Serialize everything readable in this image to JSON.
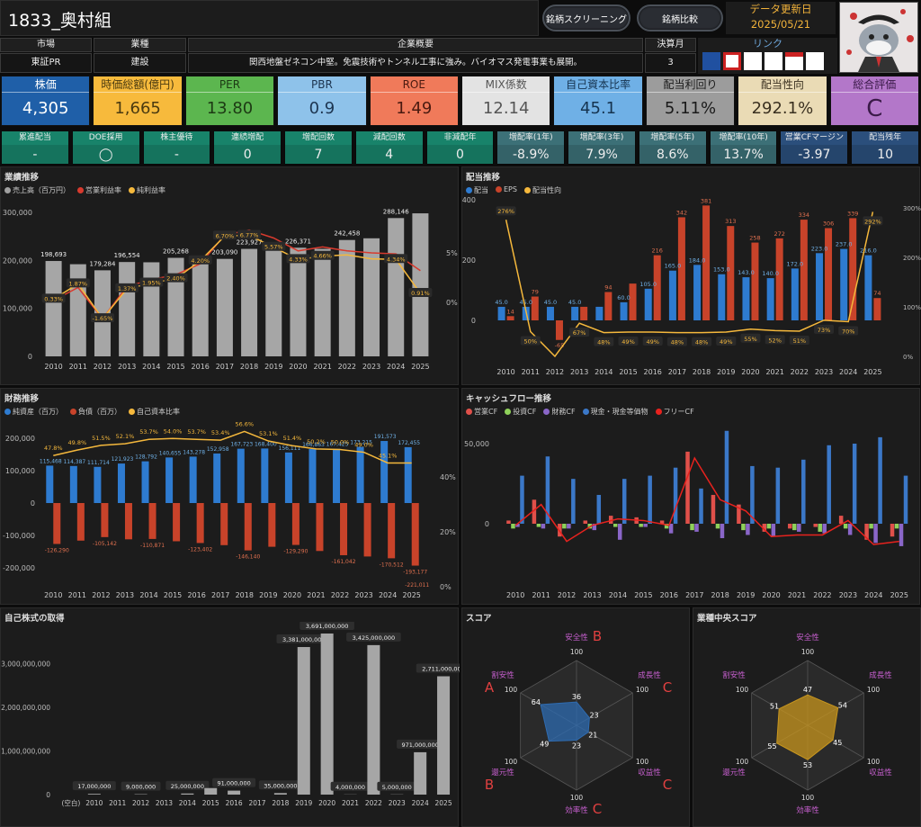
{
  "title": "1833_奥村組",
  "buttons": {
    "screening": "銘柄スクリーニング",
    "compare": "銘柄比較"
  },
  "update": {
    "label": "データ更新日",
    "date": "2025/05/21"
  },
  "info": {
    "market_h": "市場",
    "market": "東証PR",
    "industry_h": "業種",
    "industry": "建設",
    "overview_h": "企業概要",
    "overview": "関西地盤ゼネコン中堅。免震技術やトンネル工事に強み。バイオマス発電事業も展開。",
    "fiscal_h": "決算月",
    "fiscal": "3",
    "link_h": "リンク"
  },
  "kpis": [
    {
      "label": "株価",
      "value": "4,305",
      "bg": "#1f5fa8",
      "fg": "#ffffff"
    },
    {
      "label": "時価総額(億円)",
      "value": "1,665",
      "bg": "#f7ba3c",
      "fg": "#4a3a10"
    },
    {
      "label": "PER",
      "value": "13.80",
      "bg": "#5cb64f",
      "fg": "#1d3a14"
    },
    {
      "label": "PBR",
      "value": "0.9",
      "bg": "#8ec2ea",
      "fg": "#1d3550"
    },
    {
      "label": "ROE",
      "value": "1.49",
      "bg": "#f07a5a",
      "fg": "#4a1a10"
    },
    {
      "label": "MIX係数",
      "value": "12.14",
      "bg": "#e3e3e3",
      "fg": "#555555"
    },
    {
      "label": "自己資本比率",
      "value": "45.1",
      "bg": "#6fb0e6",
      "fg": "#163450"
    },
    {
      "label": "配当利回り",
      "value": "5.11%",
      "bg": "#9c9c9c",
      "fg": "#1a1a1a"
    },
    {
      "label": "配当性向",
      "value": "292.1%",
      "bg": "#eadbb5",
      "fg": "#3a3020"
    },
    {
      "label": "総合評価",
      "value": "C",
      "bg": "#b377c9",
      "fg": "#3a1a48"
    }
  ],
  "stats": [
    {
      "label": "累進配当",
      "value": "-",
      "bg": "#18836a"
    },
    {
      "label": "DOE採用",
      "value": "◯",
      "bg": "#18836a"
    },
    {
      "label": "株主優待",
      "value": "-",
      "bg": "#18836a"
    },
    {
      "label": "連続増配",
      "value": "0",
      "bg": "#18836a"
    },
    {
      "label": "増配回数",
      "value": "7",
      "bg": "#18836a"
    },
    {
      "label": "減配回数",
      "value": "4",
      "bg": "#18836a"
    },
    {
      "label": "非減配年",
      "value": "0",
      "bg": "#18836a"
    },
    {
      "label": "増配率(1年)",
      "value": "-8.9%",
      "bg": "#3c7077"
    },
    {
      "label": "増配率(3年)",
      "value": "7.9%",
      "bg": "#3c7077"
    },
    {
      "label": "増配率(5年)",
      "value": "8.6%",
      "bg": "#3c7077"
    },
    {
      "label": "増配率(10年)",
      "value": "13.7%",
      "bg": "#3c7077"
    },
    {
      "label": "営業CFマージン",
      "value": "-3.97",
      "bg": "#2b4f7c"
    },
    {
      "label": "配当残年",
      "value": "10",
      "bg": "#2b4f7c"
    }
  ],
  "panels": {
    "perf": "業績推移",
    "div": "配当推移",
    "fin": "財務推移",
    "cf": "キャッシュフロー推移",
    "buyback": "自己株式の取得",
    "score": "スコア",
    "indscore": "業種中央スコア"
  },
  "chart_data": [
    {
      "type": "bar",
      "id": "performance",
      "title": "業績推移",
      "legend": [
        "売上高（百万円）",
        "営業利益率",
        "純利益率"
      ],
      "categories": [
        "2010",
        "2011",
        "2012",
        "2013",
        "2014",
        "2015",
        "2016",
        "2017",
        "2018",
        "2019",
        "2020",
        "2021",
        "2022",
        "2023",
        "2024",
        "2025"
      ],
      "series": [
        {
          "name": "売上高（百万円）",
          "values": [
            198693,
            192000,
            179284,
            196554,
            196000,
            205268,
            199000,
            203090,
            223927,
            224000,
            226371,
            224000,
            242458,
            246000,
            288146,
            298000
          ]
        },
        {
          "name": "営業利益率",
          "values": [
            0.2,
            1.5,
            -1.65,
            1.6,
            2.3,
            2.8,
            3.9,
            6.8,
            7.3,
            6.5,
            5.2,
            5.6,
            5.2,
            5.0,
            4.9,
            3.2
          ]
        },
        {
          "name": "純利益率",
          "values": [
            0.33,
            1.87,
            -1.65,
            1.37,
            1.95,
            2.4,
            4.2,
            6.7,
            6.77,
            5.57,
            4.33,
            4.66,
            4.8,
            4.4,
            4.34,
            0.91
          ]
        }
      ],
      "value_labels": [
        "198,693",
        "",
        "179,284",
        "196,554",
        "",
        "205,268",
        "",
        "203,090",
        "223,927",
        "",
        "226,371",
        "",
        "242,458",
        "",
        "288,146",
        ""
      ],
      "net_labels": [
        "0.33%",
        "1.87%",
        "-1.65%",
        "1.37%",
        "1.95%",
        "2.40%",
        "4.20%",
        "6.70%",
        "6.77%",
        "5.57%",
        "4.33%",
        "4.66%",
        "",
        "",
        "4.34%",
        "0.91%"
      ],
      "yticks": [
        "300,000",
        "200,000",
        "100,000",
        "0"
      ],
      "y2ticks": [
        "5%",
        "0%"
      ],
      "ylim": [
        0,
        300000
      ]
    },
    {
      "type": "bar",
      "id": "dividend",
      "title": "配当推移",
      "legend": [
        "配当",
        "EPS",
        "配当性向"
      ],
      "categories": [
        "2010",
        "2011",
        "2012",
        "2013",
        "2014",
        "2015",
        "2016",
        "2017",
        "2018",
        "2019",
        "2020",
        "2021",
        "2022",
        "2023",
        "2024",
        "2025"
      ],
      "series": [
        {
          "name": "配当",
          "values": [
            45,
            45,
            45,
            45,
            45,
            60,
            105,
            165,
            184,
            153,
            143,
            140,
            172,
            223,
            237,
            216
          ]
        },
        {
          "name": "EPS",
          "values": [
            14,
            79,
            -65,
            45,
            94,
            122,
            216,
            342,
            381,
            313,
            258,
            272,
            334,
            306,
            339,
            74
          ]
        },
        {
          "name": "配当性向",
          "values": [
            276,
            50,
            0,
            67,
            48,
            49,
            49,
            48,
            48,
            49,
            55,
            52,
            51,
            73,
            70,
            292
          ]
        }
      ],
      "div_labels": [
        "45.0",
        "45.0",
        "45.0",
        "45.0",
        "",
        "60.0",
        "105.0",
        "165.0",
        "184.0",
        "153.0",
        "143.0",
        "140.0",
        "172.0",
        "223.0",
        "237.0",
        "216.0"
      ],
      "eps_labels": [
        "14",
        "79",
        "-65",
        "",
        "94",
        "",
        "216",
        "342",
        "381",
        "313",
        "258",
        "272",
        "334",
        "306",
        "339",
        "74"
      ],
      "ratio_labels": [
        "276%",
        "50%",
        "",
        "67%",
        "48%",
        "49%",
        "49%",
        "48%",
        "48%",
        "49%",
        "55%",
        "52%",
        "51%",
        "73%",
        "70%",
        "292%"
      ],
      "yticks": [
        "400",
        "200",
        "0"
      ],
      "y2ticks": [
        "300%",
        "200%",
        "100%",
        "0%"
      ]
    },
    {
      "type": "bar",
      "id": "financial",
      "title": "財務推移",
      "legend": [
        "純資産（百万）",
        "負債（百万）",
        "自己資本比率"
      ],
      "categories": [
        "2010",
        "2011",
        "2012",
        "2013",
        "2014",
        "2015",
        "2016",
        "2017",
        "2018",
        "2019",
        "2020",
        "2021",
        "2022",
        "2023",
        "2024",
        "2025"
      ],
      "series": [
        {
          "name": "純資産（百万）",
          "values": [
            115468,
            114387,
            111714,
            121923,
            128792,
            140655,
            143278,
            152958,
            167723,
            168400,
            156111,
            166863,
            167425,
            173215,
            191573,
            172455
          ]
        },
        {
          "name": "負債（百万）",
          "values": [
            -126290,
            -116000,
            -105142,
            -112000,
            -110871,
            -118000,
            -123402,
            -130000,
            -146140,
            -135000,
            -129290,
            -148000,
            -161042,
            -165000,
            -170512,
            -193177
          ]
        },
        {
          "name": "自己資本比率",
          "values": [
            47.8,
            49.8,
            51.5,
            52.1,
            53.7,
            54.0,
            53.7,
            53.4,
            56.6,
            53.1,
            51.4,
            50.2,
            50.0,
            49.0,
            45.1,
            45.1
          ]
        }
      ],
      "asset_labels": [
        "115,468",
        "114,387",
        "111,714",
        "121,923",
        "128,792",
        "140,655",
        "143,278",
        "152,958",
        "167,723",
        "168,400",
        "156,111",
        "166,863",
        "167,425",
        "173,215",
        "191,573",
        "172,455"
      ],
      "debt_labels": [
        "-126,290",
        "",
        "-105,142",
        "",
        "-110,871",
        "",
        "-123,402",
        "",
        "-146,140",
        "",
        "-129,290",
        "",
        "-161,042",
        "",
        "-170,512",
        "-193,177"
      ],
      "extra_debt_label": "-221,011",
      "ratio_labels": [
        "47.8%",
        "49.8%",
        "51.5%",
        "52.1%",
        "53.7%",
        "54.0%",
        "53.7%",
        "53.4%",
        "56.6%",
        "53.1%",
        "51.4%",
        "50.2%",
        "50.0%",
        "49.0%",
        "45.1%",
        ""
      ],
      "yticks": [
        "200,000",
        "100,000",
        "0",
        "-100,000",
        "-200,000"
      ],
      "y2ticks": [
        "40%",
        "20%",
        "0%"
      ]
    },
    {
      "type": "bar",
      "id": "cashflow",
      "title": "キャッシュフロー推移",
      "legend": [
        "営業CF",
        "投資CF",
        "財務CF",
        "現金・現金等価物",
        "フリーCF"
      ],
      "categories": [
        "2010",
        "2011",
        "2012",
        "2013",
        "2014",
        "2015",
        "2016",
        "2017",
        "2018",
        "2019",
        "2020",
        "2021",
        "2022",
        "2023",
        "2024",
        "2025"
      ],
      "series": [
        {
          "name": "営業CF",
          "values": [
            2000,
            15000,
            -8000,
            2000,
            5000,
            4000,
            2000,
            45000,
            18000,
            12000,
            -5000,
            -3000,
            -2000,
            5000,
            -10000,
            -8000
          ]
        },
        {
          "name": "投資CF",
          "values": [
            -3000,
            -2000,
            -3000,
            -3000,
            -2000,
            -2000,
            -3000,
            -4000,
            -3000,
            -4000,
            -3000,
            -4000,
            -5000,
            -3000,
            -3000,
            -3000
          ]
        },
        {
          "name": "財務CF",
          "values": [
            -2000,
            -3000,
            -3000,
            -4000,
            -10000,
            -2000,
            -6000,
            -5000,
            -9000,
            -7000,
            -8000,
            -5000,
            -6000,
            -7000,
            -12000,
            -14000
          ]
        },
        {
          "name": "現金・現金等価物",
          "values": [
            30000,
            42000,
            28000,
            18000,
            28000,
            30000,
            35000,
            22000,
            58000,
            36000,
            35000,
            40000,
            49000,
            50000,
            54000,
            30000
          ]
        },
        {
          "name": "フリーCF",
          "values": [
            -1000,
            12000,
            -11000,
            -1000,
            3000,
            2000,
            -1000,
            41000,
            15000,
            8000,
            -8000,
            -7000,
            -7000,
            2000,
            -13000,
            -11000
          ]
        }
      ],
      "yticks": [
        "50,000",
        "0"
      ]
    },
    {
      "type": "bar",
      "id": "buyback",
      "title": "自己株式の取得",
      "categories": [
        "(空白)",
        "2010",
        "2011",
        "2012",
        "2013",
        "2014",
        "2015",
        "2016",
        "2017",
        "2018",
        "2019",
        "2020",
        "2021",
        "2022",
        "2023",
        "2024",
        "2025"
      ],
      "values": [
        0,
        17000000,
        0,
        9000000,
        0,
        25000000,
        150000000,
        91000000,
        0,
        35000000,
        3381000000,
        3691000000,
        4000000,
        3425000000,
        5000000,
        971000000,
        2711000000
      ],
      "labels": [
        "",
        "17,000,000",
        "",
        "9,000,000",
        "",
        "25,000,000",
        "",
        "91,000,000",
        "",
        "35,000,000",
        "3,381,000,000",
        "3,691,000,000",
        "4,000,000",
        "3,425,000,000",
        "5,000,000",
        "971,000,000",
        "2,711,000,000"
      ],
      "yticks": [
        "3,000,000,000",
        "2,000,000,000",
        "1,000,000,000",
        "0"
      ],
      "ylim": [
        0,
        3800000000
      ]
    },
    {
      "type": "radar",
      "id": "score",
      "title": "スコア",
      "axes": [
        "安全性",
        "成長性",
        "収益性",
        "効率性",
        "還元性",
        "割安性"
      ],
      "max": "100",
      "values": [
        36,
        23,
        21,
        23,
        49,
        64
      ],
      "grades": [
        "B",
        "C",
        "C",
        "C",
        "B",
        "A"
      ],
      "color": "#2e6bb0"
    },
    {
      "type": "radar",
      "id": "indscore",
      "title": "業種中央スコア",
      "axes": [
        "安全性",
        "成長性",
        "収益性",
        "効率性",
        "還元性",
        "割安性"
      ],
      "max": "100",
      "values": [
        47,
        54,
        45,
        53,
        55,
        51
      ],
      "color": "#c8961e"
    }
  ]
}
